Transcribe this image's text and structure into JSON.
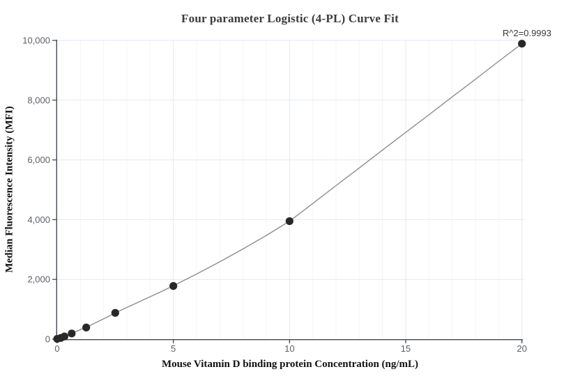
{
  "chart_data": {
    "type": "scatter",
    "title": "Four parameter Logistic (4-PL) Curve Fit",
    "xlabel": "Mouse Vitamin D binding protein Concentration (ng/mL)",
    "ylabel": "Median Fluorescence Intensity (MFI)",
    "annotation": "R^2=0.9993",
    "r_squared": 0.9993,
    "xlim": [
      0,
      20.1
    ],
    "ylim": [
      0,
      10000
    ],
    "x_ticks": [
      0,
      5,
      10,
      15,
      20
    ],
    "x_tick_labels": [
      "0",
      "5",
      "10",
      "15",
      "20"
    ],
    "x_minor_grid_step": 1,
    "y_ticks": [
      0,
      2000,
      4000,
      6000,
      8000,
      10000
    ],
    "y_tick_labels": [
      "0",
      "2,000",
      "4,000",
      "6,000",
      "8,000",
      "10,000"
    ],
    "grid": true,
    "legend": "none",
    "series": [
      {
        "name": "standard-points",
        "type": "scatter",
        "points": [
          {
            "x": 0,
            "y": 10
          },
          {
            "x": 0.1563,
            "y": 40
          },
          {
            "x": 0.3125,
            "y": 90
          },
          {
            "x": 0.625,
            "y": 190
          },
          {
            "x": 1.25,
            "y": 390
          },
          {
            "x": 2.5,
            "y": 880
          },
          {
            "x": 5,
            "y": 1780
          },
          {
            "x": 10,
            "y": 3950
          },
          {
            "x": 20,
            "y": 9890
          }
        ]
      },
      {
        "name": "4pl-fit-line",
        "type": "line",
        "points": [
          [
            0,
            -30
          ],
          [
            0.25,
            60
          ],
          [
            0.5,
            150
          ],
          [
            0.75,
            240
          ],
          [
            1,
            320
          ],
          [
            1.5,
            490
          ],
          [
            2,
            680
          ],
          [
            2.5,
            880
          ],
          [
            3,
            1060
          ],
          [
            3.5,
            1240
          ],
          [
            4,
            1420
          ],
          [
            4.5,
            1600
          ],
          [
            5,
            1790
          ],
          [
            6,
            2180
          ],
          [
            7,
            2590
          ],
          [
            8,
            3020
          ],
          [
            9,
            3470
          ],
          [
            10,
            3950
          ],
          [
            11,
            4540
          ],
          [
            12,
            5140
          ],
          [
            13,
            5730
          ],
          [
            14,
            6330
          ],
          [
            15,
            6920
          ],
          [
            16,
            7510
          ],
          [
            17,
            8110
          ],
          [
            18,
            8700
          ],
          [
            19,
            9300
          ],
          [
            20,
            9890
          ]
        ]
      }
    ],
    "colors": {
      "background": "#ffffff",
      "marker": "#282828",
      "fit_line": "#8d8d8d",
      "axis": "#444a52",
      "tick_label": "#5a5f66",
      "grid_major": "#e2e9f3",
      "grid_minor": "#f2f4f9"
    }
  }
}
